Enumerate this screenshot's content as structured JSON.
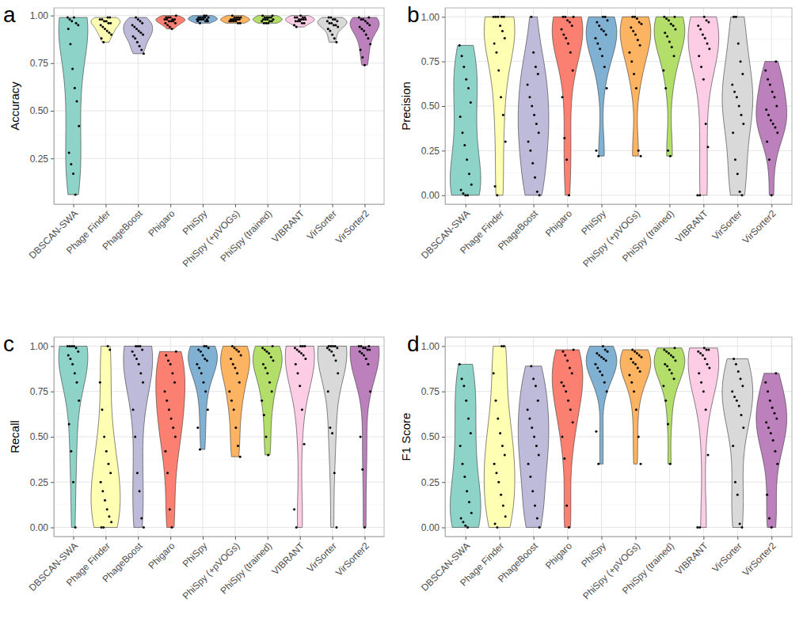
{
  "chart_data": [
    {
      "type": "violin",
      "title": "a",
      "y_label": "Accuracy",
      "categories": [
        "DBSCAN-SWA",
        "Phage Finder",
        "PhageBoost",
        "Phigaro",
        "PhiSpy",
        "PhiSpy (+pVOGs)",
        "PhiSpy (trained)",
        "VIBRANT",
        "VirSorter",
        "VirSorter2"
      ],
      "colors": [
        "#8dd3c7",
        "#ffffb3",
        "#bebada",
        "#fb8072",
        "#80b1d3",
        "#fdb462",
        "#b3de69",
        "#fccde5",
        "#d9d9d9",
        "#bc80bd"
      ],
      "values": [
        [
          0.99,
          0.98,
          0.97,
          0.99,
          0.96,
          0.95,
          0.93,
          0.85,
          0.72,
          0.62,
          0.55,
          0.42,
          0.28,
          0.22,
          0.17,
          0.06
        ],
        [
          0.99,
          0.99,
          0.98,
          0.98,
          0.97,
          0.97,
          0.96,
          0.96,
          0.95,
          0.94,
          0.93,
          0.92,
          0.91,
          0.9,
          0.88,
          0.86
        ],
        [
          0.99,
          0.98,
          0.97,
          0.96,
          0.95,
          0.94,
          0.93,
          0.92,
          0.91,
          0.9,
          0.89,
          0.88,
          0.86,
          0.84,
          0.82,
          0.8
        ],
        [
          1.0,
          0.99,
          0.99,
          0.99,
          0.98,
          0.98,
          0.98,
          0.98,
          0.97,
          0.97,
          0.97,
          0.96,
          0.96,
          0.95,
          0.94,
          0.93
        ],
        [
          1.0,
          1.0,
          0.99,
          0.99,
          0.99,
          0.99,
          0.99,
          0.98,
          0.98,
          0.98,
          0.98,
          0.98,
          0.97,
          0.97,
          0.97,
          0.96
        ],
        [
          1.0,
          0.99,
          0.99,
          0.99,
          0.99,
          0.98,
          0.98,
          0.98,
          0.98,
          0.98,
          0.97,
          0.97,
          0.97,
          0.97,
          0.96,
          0.96
        ],
        [
          1.0,
          1.0,
          0.99,
          0.99,
          0.99,
          0.99,
          0.98,
          0.98,
          0.98,
          0.98,
          0.97,
          0.97,
          0.97,
          0.96,
          0.96,
          0.96
        ],
        [
          1.0,
          0.99,
          0.99,
          0.99,
          0.99,
          0.98,
          0.98,
          0.98,
          0.98,
          0.97,
          0.97,
          0.97,
          0.96,
          0.96,
          0.95,
          0.94
        ],
        [
          0.99,
          0.99,
          0.98,
          0.98,
          0.97,
          0.97,
          0.96,
          0.96,
          0.95,
          0.95,
          0.94,
          0.93,
          0.92,
          0.9,
          0.88,
          0.86
        ],
        [
          0.99,
          0.99,
          0.98,
          0.98,
          0.97,
          0.96,
          0.95,
          0.94,
          0.93,
          0.92,
          0.9,
          0.88,
          0.85,
          0.82,
          0.78,
          0.74
        ]
      ],
      "ylim": [
        0.01,
        1.04
      ],
      "yticks": [
        {
          "value": 0.25,
          "label": "0.25"
        },
        {
          "value": 0.5,
          "label": "0.50"
        },
        {
          "value": 0.75,
          "label": "0.75"
        },
        {
          "value": 1,
          "label": "1.00"
        }
      ],
      "grid": true
    },
    {
      "type": "violin",
      "title": "b",
      "y_label": "Precision",
      "categories": [
        "DBSCAN-SWA",
        "Phage Finder",
        "PhageBoost",
        "Phigaro",
        "PhiSpy",
        "PhiSpy (+pVOGs)",
        "PhiSpy (trained)",
        "VIBRANT",
        "VirSorter",
        "VirSorter2"
      ],
      "colors": [
        "#8dd3c7",
        "#ffffb3",
        "#bebada",
        "#fb8072",
        "#80b1d3",
        "#fdb462",
        "#b3de69",
        "#fccde5",
        "#d9d9d9",
        "#bc80bd"
      ],
      "values": [
        [
          0.84,
          0.78,
          0.72,
          0.65,
          0.6,
          0.52,
          0.44,
          0.35,
          0.28,
          0.2,
          0.12,
          0.06,
          0.03,
          0.01,
          0.0,
          0.0
        ],
        [
          1.0,
          1.0,
          1.0,
          1.0,
          1.0,
          0.95,
          0.92,
          0.88,
          0.85,
          0.8,
          0.7,
          0.55,
          0.45,
          0.3,
          0.05,
          0.0
        ],
        [
          1.0,
          0.8,
          0.72,
          0.68,
          0.62,
          0.55,
          0.5,
          0.45,
          0.4,
          0.35,
          0.3,
          0.25,
          0.18,
          0.1,
          0.02,
          0.0
        ],
        [
          1.0,
          1.0,
          1.0,
          0.98,
          0.97,
          0.95,
          0.93,
          0.9,
          0.88,
          0.85,
          0.8,
          0.7,
          0.55,
          0.32,
          0.2,
          0.0
        ],
        [
          1.0,
          1.0,
          0.98,
          0.97,
          0.95,
          0.93,
          0.92,
          0.9,
          0.88,
          0.85,
          0.82,
          0.78,
          0.72,
          0.6,
          0.25,
          0.22
        ],
        [
          1.0,
          1.0,
          0.99,
          0.97,
          0.96,
          0.94,
          0.92,
          0.9,
          0.87,
          0.84,
          0.8,
          0.75,
          0.68,
          0.6,
          0.25,
          0.22
        ],
        [
          1.0,
          1.0,
          0.99,
          0.98,
          0.96,
          0.95,
          0.93,
          0.91,
          0.89,
          0.86,
          0.83,
          0.78,
          0.7,
          0.6,
          0.25,
          0.22
        ],
        [
          1.0,
          0.98,
          0.97,
          0.95,
          0.93,
          0.9,
          0.88,
          0.85,
          0.82,
          0.78,
          0.72,
          0.65,
          0.4,
          0.27,
          0.0,
          0.0
        ],
        [
          1.0,
          1.0,
          0.85,
          0.75,
          0.68,
          0.62,
          0.58,
          0.55,
          0.5,
          0.45,
          0.4,
          0.35,
          0.2,
          0.12,
          0.02,
          0.0
        ],
        [
          0.75,
          0.7,
          0.65,
          0.62,
          0.58,
          0.55,
          0.5,
          0.48,
          0.45,
          0.42,
          0.4,
          0.38,
          0.35,
          0.3,
          0.2,
          0.0
        ]
      ],
      "ylim": [
        -0.05,
        1.05
      ],
      "yticks": [
        {
          "value": 0,
          "label": "0.00"
        },
        {
          "value": 0.25,
          "label": "0.25"
        },
        {
          "value": 0.5,
          "label": "0.50"
        },
        {
          "value": 0.75,
          "label": "0.75"
        },
        {
          "value": 1,
          "label": "1.00"
        }
      ],
      "grid": true
    },
    {
      "type": "violin",
      "title": "c",
      "y_label": "Recall",
      "categories": [
        "DBSCAN-SWA",
        "Phage Finder",
        "PhageBoost",
        "Phigaro",
        "PhiSpy",
        "PhiSpy (+pVOGs)",
        "PhiSpy (trained)",
        "VIBRANT",
        "VirSorter",
        "VirSorter2"
      ],
      "colors": [
        "#8dd3c7",
        "#ffffb3",
        "#bebada",
        "#fb8072",
        "#80b1d3",
        "#fdb462",
        "#b3de69",
        "#fccde5",
        "#d9d9d9",
        "#bc80bd"
      ],
      "values": [
        [
          1.0,
          1.0,
          1.0,
          1.0,
          0.99,
          0.97,
          0.95,
          0.93,
          0.9,
          0.85,
          0.8,
          0.7,
          0.57,
          0.42,
          0.25,
          0.0
        ],
        [
          1.0,
          0.98,
          0.8,
          0.65,
          0.5,
          0.42,
          0.35,
          0.3,
          0.25,
          0.2,
          0.15,
          0.1,
          0.06,
          0.03,
          0.0,
          0.0
        ],
        [
          1.0,
          1.0,
          1.0,
          0.98,
          0.97,
          0.95,
          0.93,
          0.9,
          0.85,
          0.8,
          0.65,
          0.5,
          0.3,
          0.2,
          0.05,
          0.0
        ],
        [
          0.97,
          0.95,
          0.92,
          0.9,
          0.85,
          0.8,
          0.75,
          0.7,
          0.65,
          0.6,
          0.55,
          0.5,
          0.42,
          0.3,
          0.1,
          0.0
        ],
        [
          1.0,
          1.0,
          0.99,
          0.98,
          0.97,
          0.95,
          0.93,
          0.92,
          0.9,
          0.88,
          0.85,
          0.8,
          0.75,
          0.65,
          0.55,
          0.43
        ],
        [
          1.0,
          0.99,
          0.98,
          0.97,
          0.95,
          0.93,
          0.9,
          0.88,
          0.85,
          0.8,
          0.75,
          0.7,
          0.65,
          0.55,
          0.45,
          0.39
        ],
        [
          1.0,
          0.99,
          0.98,
          0.97,
          0.96,
          0.94,
          0.92,
          0.9,
          0.88,
          0.85,
          0.8,
          0.75,
          0.7,
          0.62,
          0.5,
          0.4
        ],
        [
          1.0,
          1.0,
          1.0,
          0.99,
          0.98,
          0.97,
          0.96,
          0.95,
          0.93,
          0.9,
          0.85,
          0.78,
          0.65,
          0.46,
          0.1,
          0.0
        ],
        [
          1.0,
          1.0,
          1.0,
          1.0,
          0.99,
          0.99,
          0.98,
          0.97,
          0.95,
          0.92,
          0.85,
          0.75,
          0.55,
          0.52,
          0.3,
          0.0
        ],
        [
          1.0,
          1.0,
          1.0,
          0.99,
          0.99,
          0.98,
          0.98,
          0.97,
          0.96,
          0.95,
          0.93,
          0.9,
          0.75,
          0.5,
          0.32,
          0.0
        ]
      ],
      "ylim": [
        -0.05,
        1.05
      ],
      "yticks": [
        {
          "value": 0,
          "label": "0.00"
        },
        {
          "value": 0.25,
          "label": "0.25"
        },
        {
          "value": 0.5,
          "label": "0.50"
        },
        {
          "value": 0.75,
          "label": "0.75"
        },
        {
          "value": 1,
          "label": "1.00"
        }
      ],
      "grid": true
    },
    {
      "type": "violin",
      "title": "d",
      "y_label": "F1 Score",
      "categories": [
        "DBSCAN-SWA",
        "Phage Finder",
        "PhageBoost",
        "Phigaro",
        "PhiSpy",
        "PhiSpy (+pVOGs)",
        "PhiSpy (trained)",
        "VIBRANT",
        "VirSorter",
        "VirSorter2"
      ],
      "colors": [
        "#8dd3c7",
        "#ffffb3",
        "#bebada",
        "#fb8072",
        "#80b1d3",
        "#fdb462",
        "#b3de69",
        "#fccde5",
        "#d9d9d9",
        "#bc80bd"
      ],
      "values": [
        [
          0.9,
          0.82,
          0.78,
          0.7,
          0.6,
          0.52,
          0.45,
          0.35,
          0.28,
          0.2,
          0.14,
          0.08,
          0.05,
          0.03,
          0.01,
          0.0
        ],
        [
          1.0,
          1.0,
          0.85,
          0.7,
          0.6,
          0.52,
          0.45,
          0.4,
          0.35,
          0.3,
          0.25,
          0.18,
          0.12,
          0.06,
          0.02,
          0.0
        ],
        [
          0.89,
          0.82,
          0.78,
          0.7,
          0.65,
          0.6,
          0.55,
          0.5,
          0.45,
          0.4,
          0.35,
          0.28,
          0.2,
          0.12,
          0.05,
          0.0
        ],
        [
          0.98,
          0.97,
          0.95,
          0.92,
          0.88,
          0.85,
          0.8,
          0.78,
          0.75,
          0.7,
          0.65,
          0.58,
          0.5,
          0.38,
          0.12,
          0.0
        ],
        [
          1.0,
          0.98,
          0.97,
          0.96,
          0.95,
          0.94,
          0.93,
          0.92,
          0.9,
          0.88,
          0.86,
          0.84,
          0.8,
          0.75,
          0.53,
          0.35
        ],
        [
          0.98,
          0.97,
          0.96,
          0.95,
          0.94,
          0.93,
          0.91,
          0.9,
          0.88,
          0.86,
          0.84,
          0.8,
          0.75,
          0.65,
          0.5,
          0.35
        ],
        [
          0.99,
          0.98,
          0.97,
          0.96,
          0.95,
          0.94,
          0.92,
          0.9,
          0.89,
          0.87,
          0.85,
          0.82,
          0.78,
          0.7,
          0.57,
          0.35
        ],
        [
          0.99,
          0.98,
          0.98,
          0.97,
          0.96,
          0.95,
          0.93,
          0.9,
          0.88,
          0.85,
          0.8,
          0.75,
          0.65,
          0.4,
          0.0,
          0.0
        ],
        [
          0.93,
          0.9,
          0.86,
          0.82,
          0.78,
          0.75,
          0.72,
          0.7,
          0.67,
          0.62,
          0.55,
          0.45,
          0.25,
          0.18,
          0.02,
          0.0
        ],
        [
          0.85,
          0.8,
          0.75,
          0.7,
          0.66,
          0.63,
          0.6,
          0.58,
          0.55,
          0.52,
          0.48,
          0.42,
          0.35,
          0.18,
          0.05,
          0.0
        ]
      ],
      "ylim": [
        -0.05,
        1.05
      ],
      "yticks": [
        {
          "value": 0,
          "label": "0.00"
        },
        {
          "value": 0.25,
          "label": "0.25"
        },
        {
          "value": 0.5,
          "label": "0.50"
        },
        {
          "value": 0.75,
          "label": "0.75"
        },
        {
          "value": 1,
          "label": "1.00"
        }
      ],
      "grid": true
    }
  ]
}
